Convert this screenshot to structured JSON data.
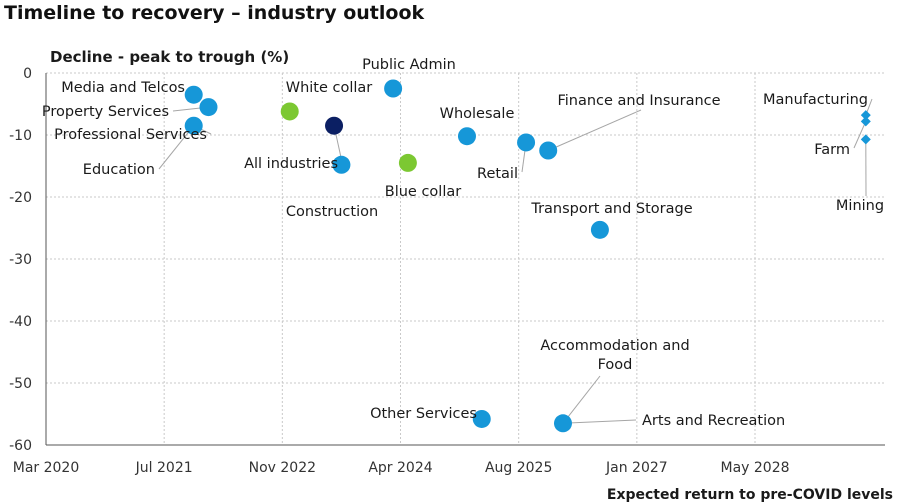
{
  "chart_data": {
    "type": "scatter",
    "title": "Timeline to recovery – industry outlook",
    "ylabel": "Decline  - peak to trough (%)",
    "xlabel": "Expected return to pre-COVID levels",
    "x_ticks": [
      "Mar 2020",
      "Jul 2021",
      "Nov 2022",
      "Apr 2024",
      "Aug 2025",
      "Jan 2027",
      "May 2028"
    ],
    "y_ticks": [
      0,
      -10,
      -20,
      -30,
      -40,
      -50,
      -60
    ],
    "ylim": [
      -60,
      0
    ],
    "grid": "horizontal",
    "points": [
      {
        "label": "Media and Telcos",
        "x": "2021-11",
        "y": -3.5,
        "color": "#1697d8",
        "shape": "circle"
      },
      {
        "label": "Property Services",
        "x": "2022-01",
        "y": -5.5,
        "color": "#1697d8",
        "shape": "circle"
      },
      {
        "label": "Professional Services",
        "x": "2021-11",
        "y": -8.5,
        "color": "#1697d8",
        "shape": "circle"
      },
      {
        "label": "Education",
        "x": "2021-11",
        "y": -8.5,
        "color": "#1697d8",
        "shape": "circle"
      },
      {
        "label": "White collar",
        "x": "2022-12",
        "y": -6.2,
        "color": "#7cc832",
        "shape": "circle"
      },
      {
        "label": "All industries",
        "x": "2023-06",
        "y": -8.5,
        "color": "#0b1f63",
        "shape": "circle"
      },
      {
        "label": "Construction",
        "x": "2023-07",
        "y": -14.8,
        "color": "#1697d8",
        "shape": "circle"
      },
      {
        "label": "Public Admin",
        "x": "2024-02",
        "y": -2.5,
        "color": "#1697d8",
        "shape": "circle"
      },
      {
        "label": "Blue collar",
        "x": "2024-04",
        "y": -14.5,
        "color": "#7cc832",
        "shape": "circle"
      },
      {
        "label": "Wholesale",
        "x": "2024-12",
        "y": -10.2,
        "color": "#1697d8",
        "shape": "circle"
      },
      {
        "label": "Retail",
        "x": "2025-08",
        "y": -11.2,
        "color": "#1697d8",
        "shape": "circle"
      },
      {
        "label": "Finance and Insurance",
        "x": "2025-11",
        "y": -12.5,
        "color": "#1697d8",
        "shape": "circle"
      },
      {
        "label": "Transport and Storage",
        "x": "2026-06",
        "y": -25.3,
        "color": "#1697d8",
        "shape": "circle"
      },
      {
        "label": "Other Services",
        "x": "2025-02",
        "y": -55.8,
        "color": "#1697d8",
        "shape": "circle"
      },
      {
        "label": "Accommodation and Food",
        "x": "2026-01",
        "y": -56.5,
        "color": "#1697d8",
        "shape": "circle"
      },
      {
        "label": "Arts and Recreation",
        "x": "2026-01",
        "y": -56.5,
        "color": "#1697d8",
        "shape": "circle"
      },
      {
        "label": "Manufacturing",
        "x": "2029-06",
        "y": -6.8,
        "color": "#1697d8",
        "shape": "diamond"
      },
      {
        "label": "Farm",
        "x": "2029-06",
        "y": -7.8,
        "color": "#1697d8",
        "shape": "diamond"
      },
      {
        "label": "Mining",
        "x": "2029-06",
        "y": -10.7,
        "color": "#1697d8",
        "shape": "diamond"
      }
    ]
  }
}
